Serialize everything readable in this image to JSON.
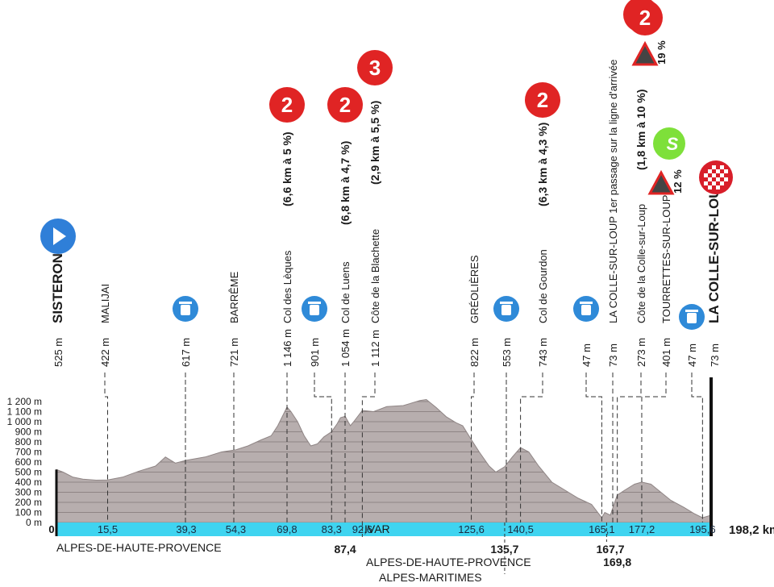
{
  "chart_data": {
    "type": "area",
    "title": "",
    "xlabel": "",
    "ylabel": "",
    "xlim": [
      0,
      198.2
    ],
    "ylim": [
      0,
      1200
    ],
    "grid": true,
    "y_ticks": [
      "0 m",
      "100 m",
      "200 m",
      "300 m",
      "400 m",
      "500 m",
      "600 m",
      "700 m",
      "800 m",
      "900 m",
      "1 000 m",
      "1 100 m",
      "1 200 m"
    ],
    "y_tick_values": [
      0,
      100,
      200,
      300,
      400,
      500,
      600,
      700,
      800,
      900,
      1000,
      1100,
      1200
    ],
    "x_tick_labels": [
      {
        "x": 0,
        "label": "0",
        "below": false
      },
      {
        "x": 15.5,
        "label": "15,5",
        "below": false
      },
      {
        "x": 39.3,
        "label": "39,3",
        "below": false
      },
      {
        "x": 54.3,
        "label": "54,3",
        "below": false
      },
      {
        "x": 69.8,
        "label": "69,8",
        "below": false
      },
      {
        "x": 83.3,
        "label": "83,3",
        "below": false
      },
      {
        "x": 87.4,
        "label": "87,4",
        "below": true
      },
      {
        "x": 92.6,
        "label": "92,6",
        "below": false
      },
      {
        "x": 125.6,
        "label": "125,6",
        "below": false
      },
      {
        "x": 135.7,
        "label": "135,7",
        "below": true
      },
      {
        "x": 140.5,
        "label": "140,5",
        "below": false
      },
      {
        "x": 165.1,
        "label": "165,1",
        "below": false
      },
      {
        "x": 167.7,
        "label": "167,7",
        "below": true
      },
      {
        "x": 169.8,
        "label": "169,8",
        "below": true
      },
      {
        "x": 177.2,
        "label": "177,2",
        "below": false
      },
      {
        "x": 195.6,
        "label": "195,6",
        "below": false
      }
    ],
    "total_distance_label": "198,2 km",
    "profile": {
      "x": [
        0,
        2,
        5,
        8,
        12,
        15.5,
        20,
        25,
        30,
        33,
        36,
        39.3,
        45,
        50,
        54.3,
        58,
        62,
        65,
        67,
        69.8,
        71,
        73,
        75,
        77,
        79,
        81,
        83.3,
        85,
        86,
        87.4,
        89,
        90,
        92.6,
        96,
        100,
        105,
        110,
        112,
        115,
        118,
        121,
        123,
        125.6,
        128,
        131,
        133,
        135.7,
        138,
        140.5,
        143,
        146,
        150,
        154,
        158,
        162,
        165.1,
        166,
        167.7,
        169,
        169.8,
        172,
        175,
        177.2,
        180,
        183,
        186,
        190,
        193,
        195.6,
        198.2
      ],
      "y": [
        525,
        500,
        450,
        430,
        420,
        422,
        450,
        510,
        560,
        650,
        590,
        617,
        650,
        700,
        721,
        760,
        820,
        860,
        960,
        1146,
        1100,
        1000,
        860,
        760,
        780,
        850,
        901,
        980,
        1040,
        1054,
        960,
        1000,
        1112,
        1100,
        1150,
        1160,
        1210,
        1220,
        1140,
        1050,
        990,
        960,
        822,
        700,
        560,
        500,
        553,
        650,
        743,
        700,
        560,
        400,
        320,
        240,
        180,
        47,
        100,
        73,
        200,
        273,
        320,
        380,
        401,
        380,
        300,
        220,
        150,
        90,
        47,
        73
      ]
    },
    "annotations": [
      {
        "x": 0,
        "alt": "525 m",
        "name": "SISTERON",
        "bold": true,
        "icon": "start",
        "gradient": ""
      },
      {
        "x": 15.5,
        "alt": "422 m",
        "name": "MALIJAI",
        "bold": false,
        "icon": "",
        "gradient": ""
      },
      {
        "x": 39.3,
        "alt": "617 m",
        "name": "",
        "bold": false,
        "icon": "feed",
        "gradient": ""
      },
      {
        "x": 54.3,
        "alt": "721 m",
        "name": "BARRÊME",
        "bold": false,
        "icon": "",
        "gradient": ""
      },
      {
        "x": 69.8,
        "alt": "1 146 m",
        "name": "Col des Lèques",
        "bold": false,
        "icon": "cat2",
        "gradient": "(6,6 km à 5 %)"
      },
      {
        "x": 83.3,
        "alt": "901 m",
        "name": "",
        "bold": false,
        "icon": "feed",
        "gradient": ""
      },
      {
        "x": 87.4,
        "alt": "1 054 m",
        "name": "Col de Luens",
        "bold": false,
        "icon": "cat2",
        "gradient": "(6,8 km à 4,7 %)"
      },
      {
        "x": 92.6,
        "alt": "1 112 m",
        "name": "Côte de la Blachette",
        "bold": false,
        "icon": "cat3",
        "gradient": "(2,9 km à 5,5 %)"
      },
      {
        "x": 125.6,
        "alt": "822 m",
        "name": "GRÉOLIÈRES",
        "bold": false,
        "icon": "",
        "gradient": ""
      },
      {
        "x": 135.7,
        "alt": "553 m",
        "name": "",
        "bold": false,
        "icon": "feed",
        "gradient": ""
      },
      {
        "x": 140.5,
        "alt": "743 m",
        "name": "Col de Gourdon",
        "bold": false,
        "icon": "cat2",
        "gradient": "(6,3 km à 4,3 %)"
      },
      {
        "x": 165.1,
        "alt": "47 m",
        "name": "",
        "bold": false,
        "icon": "feed",
        "gradient": ""
      },
      {
        "x": 167.7,
        "alt": "73 m",
        "name": "LA COLLE-SUR-LOUP 1er passage sur la ligne d'arrivée",
        "bold": false,
        "icon": "",
        "gradient": ""
      },
      {
        "x": 169.8,
        "alt": "273 m",
        "name": "Côte de la Colle-sur-Loup",
        "bold": false,
        "icon": "cat2",
        "gradient": "(1,8 km à 10 %)"
      },
      {
        "x": 177.2,
        "alt": "401 m",
        "name": "TOURRETTES-SUR-LOUP",
        "bold": false,
        "icon": "sprint",
        "gradient": ""
      },
      {
        "x": 195.6,
        "alt": "47 m",
        "name": "",
        "bold": false,
        "icon": "feed",
        "gradient": ""
      },
      {
        "x": 198.2,
        "alt": "73 m",
        "name": "LA COLLE-SUR-LOUP",
        "bold": true,
        "icon": "finish",
        "gradient": ""
      }
    ],
    "steep_markers": [
      {
        "label": "19 %"
      },
      {
        "label": "12 %"
      }
    ],
    "icon_texts": {
      "cat2": "2",
      "cat3": "3",
      "sprint": "S"
    },
    "regions": [
      {
        "label": "ALPES-DE-HAUTE-PROVENCE"
      },
      {
        "label": "IVAR"
      },
      {
        "label": "ALPES-DE-HAUTE-PROVENCE"
      },
      {
        "label": "ALPES-MARITIMES"
      }
    ],
    "colors": {
      "profile_fill": "#b7aeae",
      "profile_stroke": "#8f8585",
      "grid_lines": "#8f8585",
      "axis_bar": "#3fd4f0",
      "climb_red": "#e02424",
      "start_blue": "#2f7fd8",
      "feed_blue": "#2f8ad8",
      "sprint_green": "#7ee03a",
      "finish_red": "#d81e2a",
      "text": "#1a1a1a",
      "leader_line": "#333333"
    }
  }
}
